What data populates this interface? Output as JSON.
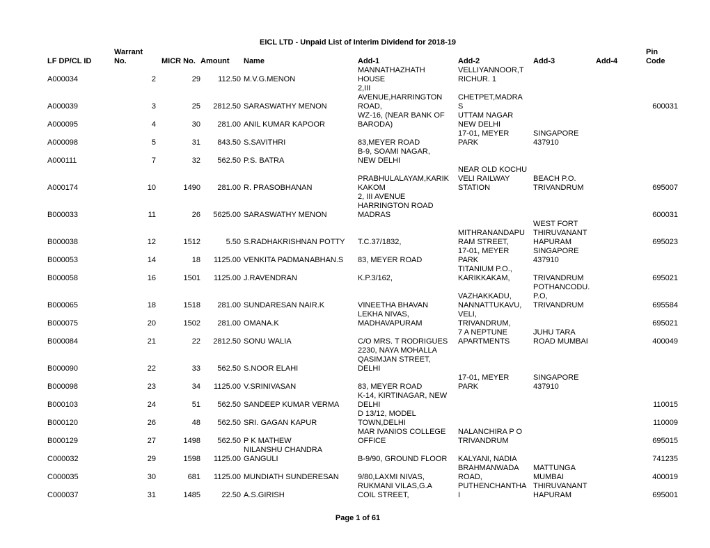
{
  "title": "EICL LTD - Unpaid List of  Interim Dividend for 2018-19",
  "footer": "Page 1 of 61",
  "headers": {
    "lf": "LF DP/CL ID",
    "warrant_top": "Warrant",
    "warrant_bot": "No.",
    "micr": "MICR No.",
    "amount": "Amount",
    "name": "Name",
    "add1": "Add-1",
    "add2": "Add-2",
    "add3": "Add-3",
    "add4": "Add-4",
    "pin_top": "Pin",
    "pin_bot": "Code"
  },
  "rows": [
    {
      "lf": "",
      "warrant": "",
      "micr": "",
      "amount": "",
      "name": "",
      "add1": "MANNATHAZHATH",
      "add2": "VELLIYANNOOR,T",
      "add3": "",
      "add4": "",
      "pin": ""
    },
    {
      "lf": "A000034",
      "warrant": "2",
      "micr": "29",
      "amount": "112.50",
      "name": "M.V.G.MENON",
      "add1": "HOUSE",
      "add2": "RICHUR.  1",
      "add3": "",
      "add4": "",
      "pin": ""
    },
    {
      "lf": "",
      "warrant": "",
      "micr": "",
      "amount": "",
      "name": "",
      "add1": "2,III",
      "add2": "",
      "add3": "",
      "add4": "",
      "pin": ""
    },
    {
      "lf": "",
      "warrant": "",
      "micr": "",
      "amount": "",
      "name": "",
      "add1": "AVENUE,HARRINGTON",
      "add2": "CHETPET,MADRA",
      "add3": "",
      "add4": "",
      "pin": ""
    },
    {
      "lf": "A000039",
      "warrant": "3",
      "micr": "25",
      "amount": "2812.50",
      "name": "SARASWATHY MENON",
      "add1": "ROAD,",
      "add2": "S",
      "add3": "",
      "add4": "",
      "pin": "600031"
    },
    {
      "lf": "",
      "warrant": "",
      "micr": "",
      "amount": "",
      "name": "",
      "add1": "WZ-16, (NEAR BANK OF",
      "add2": "UTTAM NAGAR",
      "add3": "",
      "add4": "",
      "pin": ""
    },
    {
      "lf": "A000095",
      "warrant": "4",
      "micr": "30",
      "amount": "281.00",
      "name": "ANIL KUMAR KAPOOR",
      "add1": "BARODA)",
      "add2": "NEW DELHI",
      "add3": "",
      "add4": "",
      "pin": ""
    },
    {
      "lf": "",
      "warrant": "",
      "micr": "",
      "amount": "",
      "name": "",
      "add1": "",
      "add2": "17-01, MEYER",
      "add3": "SINGAPORE",
      "add4": "",
      "pin": ""
    },
    {
      "lf": "A000098",
      "warrant": "5",
      "micr": "31",
      "amount": "843.50",
      "name": "S.SAVITHRI",
      "add1": "83,MEYER ROAD",
      "add2": "PARK",
      "add3": "437910",
      "add4": "",
      "pin": ""
    },
    {
      "lf": "",
      "warrant": "",
      "micr": "",
      "amount": "",
      "name": "",
      "add1": "B-9, SOAMI NAGAR,",
      "add2": "",
      "add3": "",
      "add4": "",
      "pin": ""
    },
    {
      "lf": "A000111",
      "warrant": "7",
      "micr": "32",
      "amount": "562.50",
      "name": "P.S. BATRA",
      "add1": "NEW DELHI",
      "add2": "",
      "add3": "",
      "add4": "",
      "pin": ""
    },
    {
      "lf": "",
      "warrant": "",
      "micr": "",
      "amount": "",
      "name": "",
      "add1": "",
      "add2": "",
      "add3": "",
      "add4": "",
      "pin": ""
    },
    {
      "lf": "",
      "warrant": "",
      "micr": "",
      "amount": "",
      "name": "",
      "add1": "",
      "add2": "NEAR OLD KOCHU",
      "add3": "",
      "add4": "",
      "pin": ""
    },
    {
      "lf": "",
      "warrant": "",
      "micr": "",
      "amount": "",
      "name": "",
      "add1": "PRABHULALAYAM,KARIK",
      "add2": "VELI RAILWAY",
      "add3": "BEACH P.O.",
      "add4": "",
      "pin": ""
    },
    {
      "lf": "A000174",
      "warrant": "10",
      "micr": "1490",
      "amount": "281.00",
      "name": "R. PRASOBHANAN",
      "add1": "KAKOM",
      "add2": "STATION",
      "add3": "TRIVANDRUM",
      "add4": "",
      "pin": "695007"
    },
    {
      "lf": "",
      "warrant": "",
      "micr": "",
      "amount": "",
      "name": "",
      "add1": "2, III AVENUE",
      "add2": "",
      "add3": "",
      "add4": "",
      "pin": ""
    },
    {
      "lf": "",
      "warrant": "",
      "micr": "",
      "amount": "",
      "name": "",
      "add1": "HARRINGTON ROAD",
      "add2": "",
      "add3": "",
      "add4": "",
      "pin": ""
    },
    {
      "lf": "B000033",
      "warrant": "11",
      "micr": "26",
      "amount": "5625.00",
      "name": "SARASWATHY MENON",
      "add1": "MADRAS",
      "add2": "",
      "add3": "",
      "add4": "",
      "pin": "600031"
    },
    {
      "lf": "",
      "warrant": "",
      "micr": "",
      "amount": "",
      "name": "",
      "add1": "",
      "add2": "",
      "add3": "WEST FORT",
      "add4": "",
      "pin": ""
    },
    {
      "lf": "",
      "warrant": "",
      "micr": "",
      "amount": "",
      "name": "",
      "add1": "",
      "add2": "MITHRANANDAPU",
      "add3": "THIRUVANANT",
      "add4": "",
      "pin": ""
    },
    {
      "lf": "B000038",
      "warrant": "12",
      "micr": "1512",
      "amount": "5.50",
      "name": "S.RADHAKRISHNAN POTTY",
      "add1": "T.C.37/1832,",
      "add2": "RAM STREET,",
      "add3": "HAPURAM",
      "add4": "",
      "pin": "695023"
    },
    {
      "lf": "",
      "warrant": "",
      "micr": "",
      "amount": "",
      "name": "",
      "add1": "",
      "add2": "17-01, MEYER",
      "add3": "SINGAPORE",
      "add4": "",
      "pin": ""
    },
    {
      "lf": "B000053",
      "warrant": "14",
      "micr": "18",
      "amount": "1125.00",
      "name": "VENKITA PADMANABHAN.S",
      "add1": "83, MEYER ROAD",
      "add2": "PARK",
      "add3": "437910",
      "add4": "",
      "pin": ""
    },
    {
      "lf": "",
      "warrant": "",
      "micr": "",
      "amount": "",
      "name": "",
      "add1": "",
      "add2": "TITANIUM P.O.,",
      "add3": "",
      "add4": "",
      "pin": ""
    },
    {
      "lf": "B000058",
      "warrant": "16",
      "micr": "1501",
      "amount": "1125.00",
      "name": "J.RAVENDRAN",
      "add1": "K.P.3/162,",
      "add2": "KARIKKAKAM,",
      "add3": "TRIVANDRUM",
      "add4": "",
      "pin": "695021"
    },
    {
      "lf": "",
      "warrant": "",
      "micr": "",
      "amount": "",
      "name": "",
      "add1": "",
      "add2": "",
      "add3": "POTHANCODU.",
      "add4": "",
      "pin": ""
    },
    {
      "lf": "",
      "warrant": "",
      "micr": "",
      "amount": "",
      "name": "",
      "add1": "",
      "add2": "VAZHAKKADU,",
      "add3": "P.O,",
      "add4": "",
      "pin": ""
    },
    {
      "lf": "B000065",
      "warrant": "18",
      "micr": "1518",
      "amount": "281.00",
      "name": "SUNDARESAN NAIR.K",
      "add1": "VINEETHA BHAVAN",
      "add2": "NANNATTUKAVU,",
      "add3": "TRIVANDRUM",
      "add4": "",
      "pin": "695584"
    },
    {
      "lf": "",
      "warrant": "",
      "micr": "",
      "amount": "",
      "name": "",
      "add1": "LEKHA NIVAS,",
      "add2": "VELI,",
      "add3": "",
      "add4": "",
      "pin": ""
    },
    {
      "lf": "B000075",
      "warrant": "20",
      "micr": "1502",
      "amount": "281.00",
      "name": "OMANA.K",
      "add1": "MADHAVAPURAM",
      "add2": "TRIVANDRUM,",
      "add3": "",
      "add4": "",
      "pin": "695021"
    },
    {
      "lf": "",
      "warrant": "",
      "micr": "",
      "amount": "",
      "name": "",
      "add1": "",
      "add2": "",
      "add3": "",
      "add4": "",
      "pin": ""
    },
    {
      "lf": "",
      "warrant": "",
      "micr": "",
      "amount": "",
      "name": "",
      "add1": "",
      "add2": "7 A  NEPTUNE",
      "add3": "JUHU TARA",
      "add4": "",
      "pin": ""
    },
    {
      "lf": "B000084",
      "warrant": "21",
      "micr": "22",
      "amount": "2812.50",
      "name": "SONU WALIA",
      "add1": "C/O MRS. T RODRIGUES",
      "add2": "APARTMENTS",
      "add3": "ROAD  MUMBAI",
      "add4": "",
      "pin": "400049"
    },
    {
      "lf": "",
      "warrant": "",
      "micr": "",
      "amount": "",
      "name": "",
      "add1": "2230, NAYA MOHALLA",
      "add2": "",
      "add3": "",
      "add4": "",
      "pin": ""
    },
    {
      "lf": "",
      "warrant": "",
      "micr": "",
      "amount": "",
      "name": "",
      "add1": "QASIMJAN STREET,",
      "add2": "",
      "add3": "",
      "add4": "",
      "pin": ""
    },
    {
      "lf": "B000090",
      "warrant": "22",
      "micr": "33",
      "amount": "562.50",
      "name": "S.NOOR ELAHI",
      "add1": "DELHI",
      "add2": "",
      "add3": "",
      "add4": "",
      "pin": ""
    },
    {
      "lf": "",
      "warrant": "",
      "micr": "",
      "amount": "",
      "name": "",
      "add1": "",
      "add2": "17-01, MEYER",
      "add3": "SINGAPORE",
      "add4": "",
      "pin": ""
    },
    {
      "lf": "B000098",
      "warrant": "23",
      "micr": "34",
      "amount": "1125.00",
      "name": "V.SRINIVASAN",
      "add1": "83, MEYER ROAD",
      "add2": "PARK",
      "add3": "437910",
      "add4": "",
      "pin": ""
    },
    {
      "lf": "",
      "warrant": "",
      "micr": "",
      "amount": "",
      "name": "",
      "add1": "K-14, KIRTINAGAR, NEW",
      "add2": "",
      "add3": "",
      "add4": "",
      "pin": ""
    },
    {
      "lf": "B000103",
      "warrant": "24",
      "micr": "51",
      "amount": "562.50",
      "name": "SANDEEP KUMAR VERMA",
      "add1": "DELHI",
      "add2": "",
      "add3": "",
      "add4": "",
      "pin": "110015"
    },
    {
      "lf": "",
      "warrant": "",
      "micr": "",
      "amount": "",
      "name": "",
      "add1": "D 13/12, MODEL",
      "add2": "",
      "add3": "",
      "add4": "",
      "pin": ""
    },
    {
      "lf": "B000120",
      "warrant": "26",
      "micr": "48",
      "amount": "562.50",
      "name": "SRI. GAGAN KAPUR",
      "add1": "TOWN,DELHI",
      "add2": "",
      "add3": "",
      "add4": "",
      "pin": "110009"
    },
    {
      "lf": "",
      "warrant": "",
      "micr": "",
      "amount": "",
      "name": "",
      "add1": "MAR IVANIOS COLLEGE",
      "add2": "NALANCHIRA P O",
      "add3": "",
      "add4": "",
      "pin": ""
    },
    {
      "lf": "B000129",
      "warrant": "27",
      "micr": "1498",
      "amount": "562.50",
      "name": "P K MATHEW",
      "add1": "OFFICE",
      "add2": "TRIVANDRUM",
      "add3": "",
      "add4": "",
      "pin": "695015"
    },
    {
      "lf": "",
      "warrant": "",
      "micr": "",
      "amount": "",
      "name": "NILANSHU CHANDRA",
      "add1": "",
      "add2": "",
      "add3": "",
      "add4": "",
      "pin": ""
    },
    {
      "lf": "C000032",
      "warrant": "29",
      "micr": "1598",
      "amount": "1125.00",
      "name": "GANGULI",
      "add1": "B-9/90, GROUND FLOOR",
      "add2": "KALYANI, NADIA",
      "add3": "",
      "add4": "",
      "pin": "741235"
    },
    {
      "lf": "",
      "warrant": "",
      "micr": "",
      "amount": "",
      "name": "",
      "add1": "",
      "add2": "BRAHMANWADA",
      "add3": "MATTUNGA",
      "add4": "",
      "pin": ""
    },
    {
      "lf": "C000035",
      "warrant": "30",
      "micr": "681",
      "amount": "1125.00",
      "name": "MUNDIATH SUNDERESAN",
      "add1": "9/80,LAXMI NIVAS,",
      "add2": "ROAD,",
      "add3": "MUMBAI",
      "add4": "",
      "pin": "400019"
    },
    {
      "lf": "",
      "warrant": "",
      "micr": "",
      "amount": "",
      "name": "",
      "add1": "RUKMANI VILAS,G.A",
      "add2": "PUTHENCHANTHA",
      "add3": "THIRUVANANT",
      "add4": "",
      "pin": ""
    },
    {
      "lf": "C000037",
      "warrant": "31",
      "micr": "1485",
      "amount": "22.50",
      "name": "A.S.GIRISH",
      "add1": "COIL STREET,",
      "add2": "I",
      "add3": "HAPURAM",
      "add4": "",
      "pin": "695001"
    }
  ]
}
